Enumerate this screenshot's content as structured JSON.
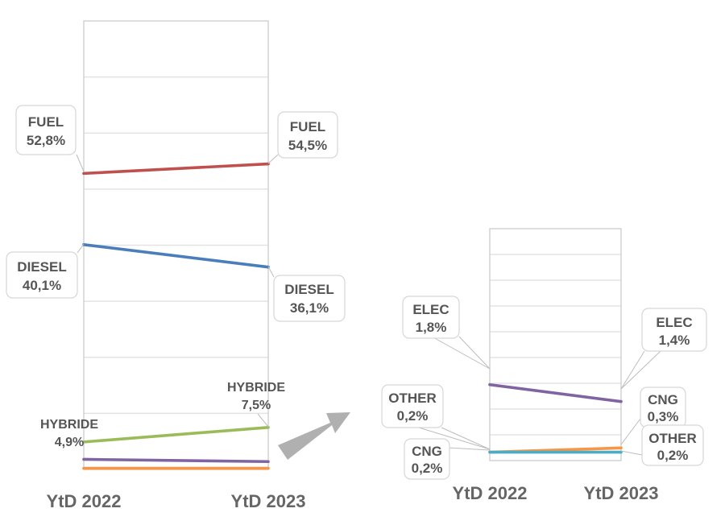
{
  "chart_data": [
    {
      "type": "line",
      "categories": [
        "YtD 2022",
        "YtD 2023"
      ],
      "ylim": [
        0,
        80
      ],
      "grid": true,
      "series": [
        {
          "name": "FUEL",
          "values": [
            52.8,
            54.5
          ],
          "labels": [
            "52,8%",
            "54,5%"
          ],
          "color": "#c0504d"
        },
        {
          "name": "DIESEL",
          "values": [
            40.1,
            36.1
          ],
          "labels": [
            "40,1%",
            "36,1%"
          ],
          "color": "#4a7ebb"
        },
        {
          "name": "HYBRIDE",
          "values": [
            4.9,
            7.5
          ],
          "labels": [
            "4,9%",
            "7,5%"
          ],
          "color": "#9bbb59"
        },
        {
          "name": "",
          "values": [
            1.8,
            1.4
          ],
          "color": "#8064a2"
        },
        {
          "name": "",
          "values": [
            0.2,
            0.2
          ],
          "color": "#f79646"
        }
      ]
    },
    {
      "type": "line",
      "categories": [
        "YtD 2022",
        "YtD 2023"
      ],
      "ylim": [
        0,
        5.5
      ],
      "grid": true,
      "series": [
        {
          "name": "ELEC",
          "values": [
            1.8,
            1.4
          ],
          "labels": [
            "1,8%",
            "1,4%"
          ],
          "color": "#8064a2"
        },
        {
          "name": "OTHER",
          "values": [
            0.2,
            0.2
          ],
          "labels": [
            "0,2%",
            "0,2%"
          ],
          "color": "#4bacc6"
        },
        {
          "name": "CNG",
          "values": [
            0.2,
            0.3
          ],
          "labels": [
            "0,2%",
            "0,3%"
          ],
          "color": "#f79646"
        }
      ]
    }
  ],
  "arrow_color": "#b0b0b0"
}
